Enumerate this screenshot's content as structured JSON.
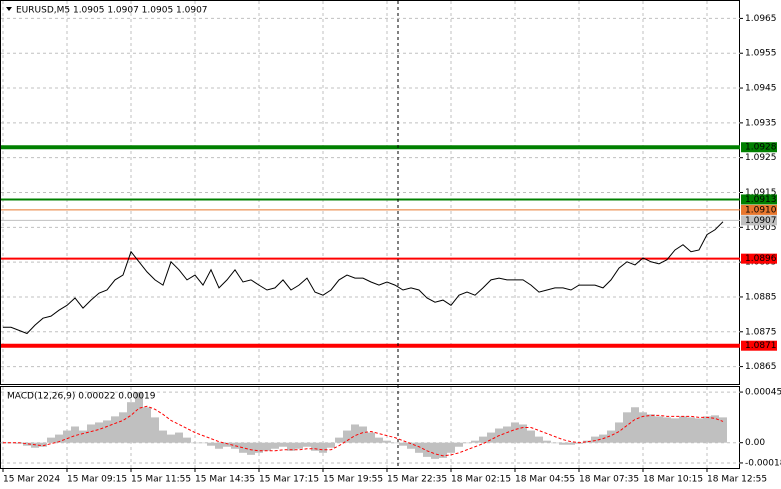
{
  "chart_data": [
    {
      "type": "line",
      "title": "EURUSD,M5  1.0905 1.0907 1.0905 1.0907",
      "color": "#000000",
      "grid": true,
      "categories": [
        "15 Mar 2024",
        null,
        null,
        null,
        null,
        null,
        null,
        null,
        "15 Mar 09:15",
        null,
        null,
        null,
        null,
        null,
        null,
        null,
        "15 Mar 11:55",
        null,
        null,
        null,
        null,
        null,
        null,
        null,
        "15 Mar 14:35",
        null,
        null,
        null,
        null,
        null,
        null,
        null,
        "15 Mar 17:15",
        null,
        null,
        null,
        null,
        null,
        null,
        null,
        "15 Mar 19:55",
        null,
        null,
        null,
        null,
        null,
        null,
        null,
        "15 Mar 22:35",
        null,
        null,
        null,
        null,
        null,
        null,
        null,
        "18 Mar 02:15",
        null,
        null,
        null,
        null,
        null,
        null,
        null,
        "18 Mar 04:55",
        null,
        null,
        null,
        null,
        null,
        null,
        null,
        "18 Mar 07:35",
        null,
        null,
        null,
        null,
        null,
        null,
        null,
        "18 Mar 10:15",
        null,
        null,
        null,
        null,
        null,
        null,
        null,
        "18 Mar 12:55",
        null,
        null
      ],
      "values": [
        1.08763,
        1.08763,
        1.08754,
        1.08745,
        1.08769,
        1.08789,
        1.08795,
        1.08812,
        1.08826,
        1.08847,
        1.08818,
        1.08841,
        1.08861,
        1.0887,
        1.08899,
        1.08913,
        1.0898,
        1.08951,
        1.08922,
        1.08899,
        1.08884,
        1.08951,
        1.08928,
        1.08899,
        1.08913,
        1.08884,
        1.08928,
        1.08876,
        1.08899,
        1.08928,
        1.08893,
        1.08899,
        1.08884,
        1.0887,
        1.08876,
        1.08899,
        1.0887,
        1.08884,
        1.08904,
        1.08864,
        1.08855,
        1.0887,
        1.08899,
        1.08913,
        1.08904,
        1.08904,
        1.08893,
        1.08884,
        1.08893,
        1.08884,
        1.0887,
        1.08876,
        1.0887,
        1.08847,
        1.08835,
        1.08841,
        1.08826,
        1.08855,
        1.08864,
        1.08855,
        1.08876,
        1.08899,
        1.08904,
        1.08899,
        1.08899,
        1.08899,
        1.08884,
        1.08864,
        1.0887,
        1.08876,
        1.08876,
        1.0887,
        1.08884,
        1.08884,
        1.08884,
        1.08876,
        1.08899,
        1.08933,
        1.08951,
        1.08942,
        1.08962,
        1.08951,
        1.08945,
        1.08957,
        1.08985,
        1.09,
        1.0898,
        1.08985,
        1.09029,
        1.09043,
        1.09066
      ],
      "ylim": [
        1.086,
        1.097
      ],
      "yticks": [
        1.0965,
        1.0955,
        1.0945,
        1.0935,
        1.0925,
        1.0915,
        1.0905,
        1.0895,
        1.0885,
        1.0875,
        1.0865
      ],
      "levels": [
        {
          "value": 1.0928,
          "color": "#008000",
          "text_color": "#ffffff",
          "width": 4
        },
        {
          "value": 1.0913,
          "color": "#008000",
          "text_color": "#ffffff",
          "width": 2
        },
        {
          "value": 1.091,
          "label": "1.0910",
          "color": "#e8772e",
          "text_color": "#ffffff",
          "width": 1
        },
        {
          "value": 1.0907,
          "color": "#c0c0c0",
          "text_color": "#000000",
          "width": 1
        },
        {
          "value": 1.0896,
          "color": "#ff0000",
          "text_color": "#ffffff",
          "width": 2
        },
        {
          "value": 1.0871,
          "color": "#ff0000",
          "text_color": "#ffffff",
          "width": 4
        }
      ]
    },
    {
      "type": "macd",
      "title": "MACD(12,26,9) 0.00022 0.00019",
      "grid": true,
      "ylim": [
        -0.000225,
        0.000495
      ],
      "yticks": [
        0.00045,
        {
          "value": 0,
          "label": "0.00"
        },
        -0.00018
      ],
      "series": [
        {
          "type": "bar",
          "color": "#c0c0c0",
          "values": [
            0,
            0,
            -9e-06,
            -2.7e-05,
            -4.5e-05,
            -3.6e-05,
            4.5e-05,
            7.2e-05,
            0.000108,
            0.000144,
            0.000108,
            0.000162,
            0.00018,
            0.000198,
            0.000234,
            0.00027,
            0.00036,
            0.00045,
            0.000315,
            0.000225,
            0.000108,
            7.2e-05,
            9e-05,
            4.5e-05,
            0,
            0,
            -2.7e-05,
            -5.4e-05,
            -3.6e-05,
            -5.4e-05,
            -9e-05,
            -0.000108,
            -9e-05,
            -7.2e-05,
            -5.4e-05,
            -3.6e-05,
            -7.2e-05,
            -5.4e-05,
            -3.6e-05,
            -7.2e-05,
            -9e-05,
            -4.5e-05,
            4.5e-05,
            0.000108,
            0.000162,
            0.000144,
            9e-05,
            4.5e-05,
            1.8e-05,
            0,
            -2.7e-05,
            -5.4e-05,
            -9e-05,
            -0.000126,
            -0.000144,
            -0.000135,
            -9e-05,
            -3.6e-05,
            0,
            1.8e-05,
            5.4e-05,
            9e-05,
            0.000126,
            0.000144,
            0.00018,
            0.000162,
            0.000108,
            5.4e-05,
            1.8e-05,
            0,
            -1.8e-05,
            -1.8e-05,
            -9e-06,
            1.8e-05,
            5.4e-05,
            7.2e-05,
            0.000108,
            0.00018,
            0.00027,
            0.000315,
            0.00027,
            0.000252,
            0.000234,
            0.000225,
            0.000216,
            0.000234,
            0.000225,
            0.000216,
            0.000234,
            0.000243,
            0.000225
          ]
        },
        {
          "type": "line",
          "color": "#ff0000",
          "dashed": true,
          "values": [
            0,
            0,
            0,
            -9e-06,
            -1.8e-05,
            -2.7e-05,
            -9e-06,
            9e-06,
            3.6e-05,
            6.3e-05,
            8.1e-05,
            9.9e-05,
            0.000117,
            0.000144,
            0.000171,
            0.000198,
            0.000243,
            0.000306,
            0.000324,
            0.000297,
            0.000252,
            0.000198,
            0.000162,
            0.000126,
            9e-05,
            6.3e-05,
            3.6e-05,
            9e-06,
            -9e-06,
            -2.7e-05,
            -4.5e-05,
            -6.3e-05,
            -7.2e-05,
            -7.2e-05,
            -7.2e-05,
            -6.3e-05,
            -6.3e-05,
            -6.3e-05,
            -5.4e-05,
            -5.4e-05,
            -6.3e-05,
            -6.3e-05,
            -2.7e-05,
            1.8e-05,
            6.3e-05,
            9e-05,
            9.9e-05,
            8.1e-05,
            6.3e-05,
            4.5e-05,
            1.8e-05,
            -9e-06,
            -3.6e-05,
            -7.2e-05,
            -9.9e-05,
            -0.000117,
            -0.000108,
            -9e-05,
            -6.3e-05,
            -3.6e-05,
            -9e-06,
            2.7e-05,
            6.3e-05,
            9e-05,
            0.000117,
            0.000135,
            0.000135,
            0.000108,
            8.1e-05,
            5.4e-05,
            2.7e-05,
            9e-06,
            0,
            9e-06,
            1.8e-05,
            3.6e-05,
            6.3e-05,
            9.9e-05,
            0.000153,
            0.000207,
            0.000234,
            0.000243,
            0.000243,
            0.000234,
            0.000234,
            0.000234,
            0.000234,
            0.000225,
            0.000225,
            0.000216,
            0.000189
          ]
        }
      ]
    }
  ]
}
